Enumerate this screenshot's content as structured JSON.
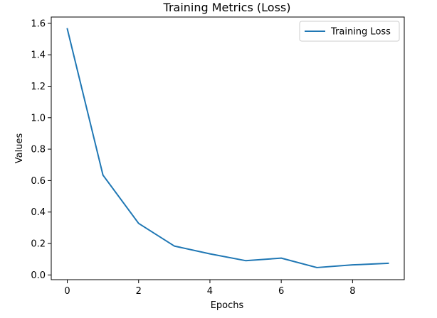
{
  "chart_data": {
    "type": "line",
    "title": "Training Metrics (Loss)",
    "xlabel": "Epochs",
    "ylabel": "Values",
    "xlim": [
      -0.45,
      9.45
    ],
    "ylim": [
      -0.03,
      1.64
    ],
    "x_ticks": [
      0,
      2,
      4,
      6,
      8
    ],
    "x_tick_labels": [
      "0",
      "2",
      "4",
      "6",
      "8"
    ],
    "y_ticks": [
      0.0,
      0.2,
      0.4,
      0.6,
      0.8,
      1.0,
      1.2,
      1.4,
      1.6
    ],
    "y_tick_labels": [
      "0.0",
      "0.2",
      "0.4",
      "0.6",
      "0.8",
      "1.0",
      "1.2",
      "1.4",
      "1.6"
    ],
    "grid": false,
    "legend_position": "top-right",
    "x": [
      0,
      1,
      2,
      3,
      4,
      5,
      6,
      7,
      8,
      9
    ],
    "series": [
      {
        "name": "Training Loss",
        "color": "#1f77b4",
        "values": [
          1.565,
          0.635,
          0.328,
          0.184,
          0.134,
          0.091,
          0.107,
          0.047,
          0.064,
          0.074
        ]
      }
    ]
  }
}
